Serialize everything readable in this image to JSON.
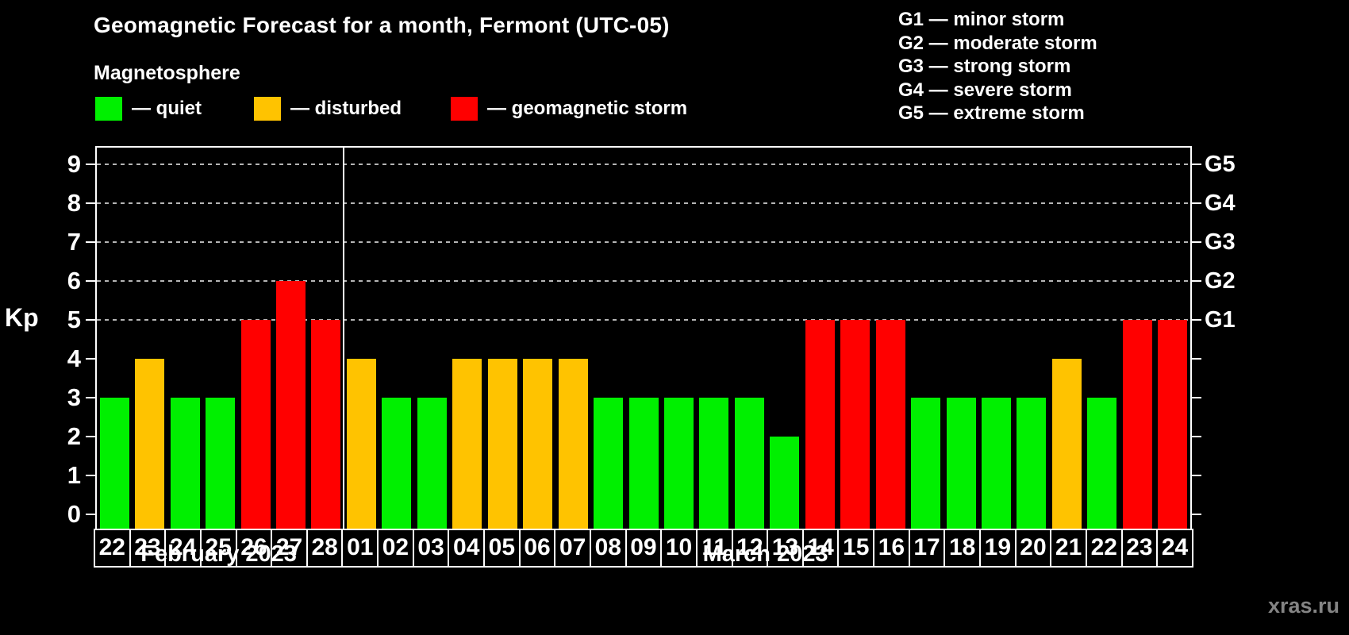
{
  "title": "Geomagnetic Forecast for a month, Fermont (UTC-05)",
  "subtitle": "Magnetosphere",
  "watermark": "xras.ru",
  "status_legend": {
    "items": [
      {
        "status": "quiet",
        "label": "— quiet",
        "color": "#00f000"
      },
      {
        "status": "disturbed",
        "label": "— disturbed",
        "color": "#ffc300"
      },
      {
        "status": "storm",
        "label": "— geomagnetic storm",
        "color": "#ff0000"
      }
    ]
  },
  "g_legend": {
    "lines": [
      "G1 — minor storm",
      "G2 — moderate storm",
      "G3 — strong storm",
      "G4 — severe storm",
      "G5 — extreme storm"
    ]
  },
  "chart_data": {
    "type": "bar",
    "title": "Geomagnetic Forecast for a month, Fermont (UTC-05)",
    "ylabel": "Kp",
    "xlabel": "",
    "ylim": [
      0,
      9
    ],
    "yticks": [
      0,
      1,
      2,
      3,
      4,
      5,
      6,
      7,
      8,
      9
    ],
    "gridlines_at": [
      5,
      6,
      7,
      8,
      9
    ],
    "grid_style": "dashed gray horizontal lines at G-storm levels only",
    "right_axis": {
      "ticks": [
        0,
        1,
        2,
        3,
        4,
        5,
        6,
        7,
        8,
        9
      ],
      "labels": [
        {
          "kp": 5,
          "label": "G1"
        },
        {
          "kp": 6,
          "label": "G2"
        },
        {
          "kp": 7,
          "label": "G3"
        },
        {
          "kp": 8,
          "label": "G4"
        },
        {
          "kp": 9,
          "label": "G5"
        }
      ]
    },
    "colors": {
      "quiet": "#00f000",
      "disturbed": "#ffc300",
      "storm": "#ff0000"
    },
    "color_rule": "Kp<=3 quiet (green), Kp=4 disturbed (orange), Kp>=5 geomagnetic storm (red)",
    "series": [
      {
        "month": "February 2023",
        "points": [
          {
            "day": "22",
            "kp": 3,
            "status": "quiet"
          },
          {
            "day": "23",
            "kp": 4,
            "status": "disturbed"
          },
          {
            "day": "24",
            "kp": 3,
            "status": "quiet"
          },
          {
            "day": "25",
            "kp": 3,
            "status": "quiet"
          },
          {
            "day": "26",
            "kp": 5,
            "status": "storm"
          },
          {
            "day": "27",
            "kp": 6,
            "status": "storm"
          },
          {
            "day": "28",
            "kp": 5,
            "status": "storm"
          }
        ]
      },
      {
        "month": "March 2023",
        "points": [
          {
            "day": "01",
            "kp": 4,
            "status": "disturbed"
          },
          {
            "day": "02",
            "kp": 3,
            "status": "quiet"
          },
          {
            "day": "03",
            "kp": 3,
            "status": "quiet"
          },
          {
            "day": "04",
            "kp": 4,
            "status": "disturbed"
          },
          {
            "day": "05",
            "kp": 4,
            "status": "disturbed"
          },
          {
            "day": "06",
            "kp": 4,
            "status": "disturbed"
          },
          {
            "day": "07",
            "kp": 4,
            "status": "disturbed"
          },
          {
            "day": "08",
            "kp": 3,
            "status": "quiet"
          },
          {
            "day": "09",
            "kp": 3,
            "status": "quiet"
          },
          {
            "day": "10",
            "kp": 3,
            "status": "quiet"
          },
          {
            "day": "11",
            "kp": 3,
            "status": "quiet"
          },
          {
            "day": "12",
            "kp": 3,
            "status": "quiet"
          },
          {
            "day": "13",
            "kp": 2,
            "status": "quiet"
          },
          {
            "day": "14",
            "kp": 5,
            "status": "storm"
          },
          {
            "day": "15",
            "kp": 5,
            "status": "storm"
          },
          {
            "day": "16",
            "kp": 5,
            "status": "storm"
          },
          {
            "day": "17",
            "kp": 3,
            "status": "quiet"
          },
          {
            "day": "18",
            "kp": 3,
            "status": "quiet"
          },
          {
            "day": "19",
            "kp": 3,
            "status": "quiet"
          },
          {
            "day": "20",
            "kp": 3,
            "status": "quiet"
          },
          {
            "day": "21",
            "kp": 4,
            "status": "disturbed"
          },
          {
            "day": "22",
            "kp": 3,
            "status": "quiet"
          },
          {
            "day": "23",
            "kp": 5,
            "status": "storm"
          },
          {
            "day": "24",
            "kp": 5,
            "status": "storm"
          }
        ]
      }
    ]
  }
}
